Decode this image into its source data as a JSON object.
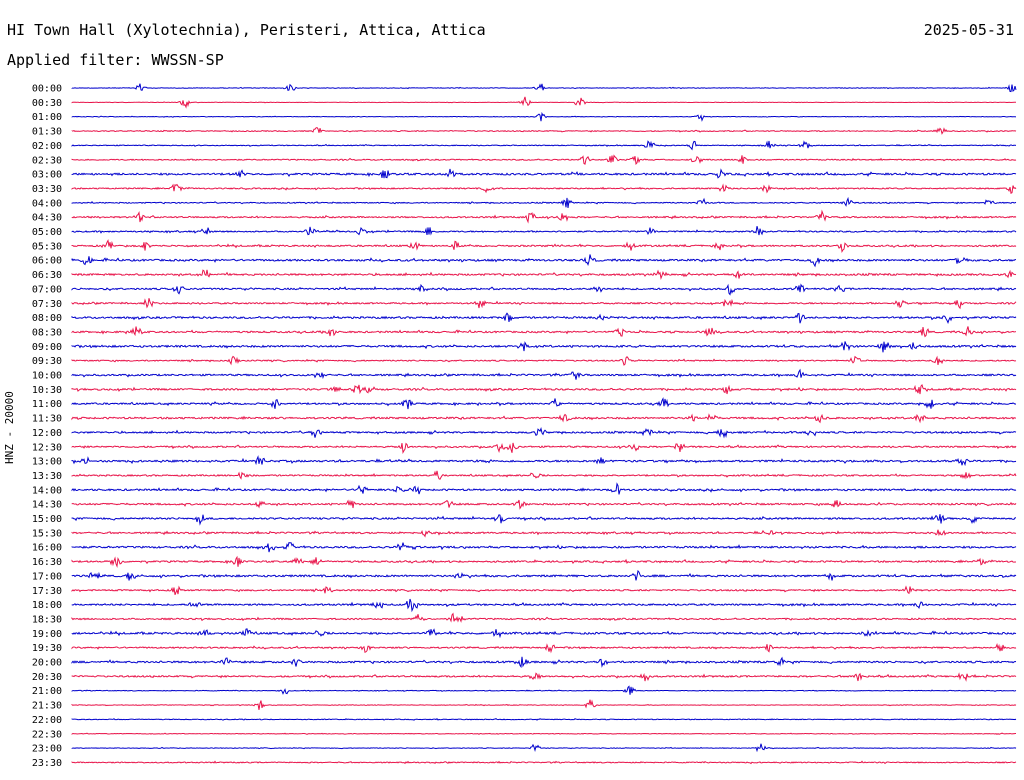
{
  "header": {
    "station": "HI Town Hall (Xylotechnia), Peristeri, Attica, Attica",
    "date": "2025-05-31",
    "filter": "Applied filter: WWSSN-SP"
  },
  "chart_data": {
    "type": "line",
    "title": "HI Town Hall (Xylotechnia), Peristeri, Attica, Attica",
    "ylabel": "HNZ - 20000",
    "colors": [
      "#0000cc",
      "#e8144a"
    ],
    "rows": [
      {
        "t": "00:00",
        "amp": 0.3,
        "events": [
          140,
          290,
          540,
          1012
        ]
      },
      {
        "t": "00:30",
        "amp": 0.2,
        "events": [
          185,
          525,
          580
        ]
      },
      {
        "t": "01:00",
        "amp": 0.25,
        "events": [
          540,
          700
        ]
      },
      {
        "t": "01:30",
        "amp": 0.45,
        "events": [
          318,
          940
        ]
      },
      {
        "t": "02:00",
        "amp": 0.4,
        "events": [
          650,
          693,
          770,
          805
        ]
      },
      {
        "t": "02:30",
        "amp": 0.55,
        "events": [
          585,
          612,
          635,
          697,
          742
        ]
      },
      {
        "t": "03:00",
        "amp": 0.9,
        "events": [
          240,
          385,
          450,
          720
        ]
      },
      {
        "t": "03:30",
        "amp": 0.6,
        "events": [
          176,
          488,
          724,
          765,
          1012
        ]
      },
      {
        "t": "04:00",
        "amp": 0.5,
        "events": [
          567,
          703,
          848,
          990
        ]
      },
      {
        "t": "04:30",
        "amp": 0.7,
        "events": [
          140,
          530,
          563,
          822
        ]
      },
      {
        "t": "05:00",
        "amp": 0.65,
        "events": [
          207,
          310,
          362,
          428,
          650,
          758
        ]
      },
      {
        "t": "05:30",
        "amp": 0.75,
        "events": [
          108,
          145,
          415,
          455,
          630,
          718,
          842
        ]
      },
      {
        "t": "06:00",
        "amp": 0.9,
        "events": [
          87,
          590,
          815,
          960
        ]
      },
      {
        "t": "06:30",
        "amp": 0.85,
        "events": [
          205,
          660,
          738,
          1010
        ]
      },
      {
        "t": "07:00",
        "amp": 0.8,
        "events": [
          178,
          420,
          598,
          730,
          800,
          840
        ]
      },
      {
        "t": "07:30",
        "amp": 0.7,
        "events": [
          148,
          480,
          728,
          900,
          960
        ]
      },
      {
        "t": "08:00",
        "amp": 0.9,
        "events": [
          508,
          600,
          800,
          948
        ]
      },
      {
        "t": "08:30",
        "amp": 0.8,
        "events": [
          136,
          330,
          620,
          710,
          924,
          968
        ]
      },
      {
        "t": "09:00",
        "amp": 0.9,
        "events": [
          523,
          845,
          884,
          915
        ]
      },
      {
        "t": "09:30",
        "amp": 0.6,
        "events": [
          234,
          625,
          855,
          938
        ]
      },
      {
        "t": "10:00",
        "amp": 0.8,
        "events": [
          320,
          575,
          800
        ]
      },
      {
        "t": "10:30",
        "amp": 0.85,
        "events": [
          335,
          357,
          370,
          727,
          920
        ]
      },
      {
        "t": "11:00",
        "amp": 0.8,
        "events": [
          275,
          408,
          555,
          664,
          930
        ]
      },
      {
        "t": "11:30",
        "amp": 0.85,
        "events": [
          565,
          693,
          712,
          820,
          920
        ]
      },
      {
        "t": "12:00",
        "amp": 0.8,
        "events": [
          315,
          540,
          648,
          723,
          812
        ]
      },
      {
        "t": "12:30",
        "amp": 0.75,
        "events": [
          403,
          500,
          512,
          634,
          680
        ]
      },
      {
        "t": "13:00",
        "amp": 0.9,
        "events": [
          86,
          260,
          600,
          962
        ]
      },
      {
        "t": "13:30",
        "amp": 0.7,
        "events": [
          243,
          438,
          535,
          965
        ]
      },
      {
        "t": "14:00",
        "amp": 0.85,
        "events": [
          362,
          400,
          416,
          617
        ]
      },
      {
        "t": "14:30",
        "amp": 0.8,
        "events": [
          260,
          350,
          448,
          520,
          836
        ]
      },
      {
        "t": "15:00",
        "amp": 0.85,
        "events": [
          200,
          500,
          940,
          972
        ]
      },
      {
        "t": "15:30",
        "amp": 0.75,
        "events": [
          426,
          768,
          940
        ]
      },
      {
        "t": "16:00",
        "amp": 0.9,
        "events": [
          270,
          290,
          402
        ]
      },
      {
        "t": "16:30",
        "amp": 0.8,
        "events": [
          117,
          237,
          298,
          316,
          980
        ]
      },
      {
        "t": "17:00",
        "amp": 0.9,
        "events": [
          94,
          130,
          458,
          637,
          830
        ]
      },
      {
        "t": "17:30",
        "amp": 0.7,
        "events": [
          177,
          328,
          908
        ]
      },
      {
        "t": "18:00",
        "amp": 0.8,
        "events": [
          195,
          378,
          410,
          414,
          918
        ]
      },
      {
        "t": "18:30",
        "amp": 0.7,
        "events": [
          418,
          453,
          460
        ]
      },
      {
        "t": "19:00",
        "amp": 0.9,
        "events": [
          205,
          246,
          320,
          432,
          497,
          868
        ]
      },
      {
        "t": "19:30",
        "amp": 0.7,
        "events": [
          366,
          550,
          768,
          1000
        ]
      },
      {
        "t": "20:00",
        "amp": 0.85,
        "events": [
          226,
          296,
          522,
          602,
          780
        ]
      },
      {
        "t": "20:30",
        "amp": 0.75,
        "events": [
          535,
          645,
          858,
          963
        ]
      },
      {
        "t": "21:00",
        "amp": 0.3,
        "events": [
          285,
          630
        ]
      },
      {
        "t": "21:30",
        "amp": 0.3,
        "events": [
          260,
          590
        ]
      },
      {
        "t": "22:00",
        "amp": 0.35,
        "events": []
      },
      {
        "t": "22:30",
        "amp": 0.3,
        "events": []
      },
      {
        "t": "23:00",
        "amp": 0.3,
        "events": [
          535,
          760
        ]
      },
      {
        "t": "23:30",
        "amp": 0.5,
        "events": []
      }
    ]
  }
}
